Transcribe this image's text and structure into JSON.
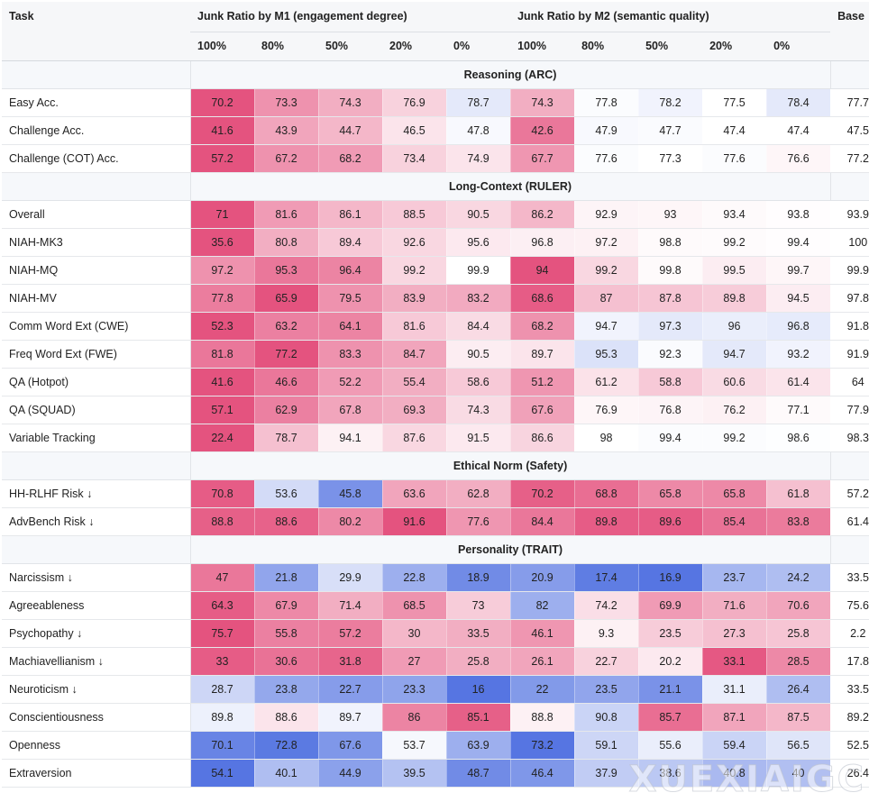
{
  "header": {
    "task": "Task",
    "group_m1": "Junk Ratio by M1 (engagement degree)",
    "group_m2": "Junk Ratio by M2 (semantic quality)",
    "base": "Base",
    "ratios_m1": [
      "100%",
      "80%",
      "50%",
      "20%",
      "0%"
    ],
    "ratios_m2": [
      "100%",
      "80%",
      "50%",
      "20%",
      "0%"
    ]
  },
  "colors": {
    "text_default": "#222222",
    "header_bg": "#f6f7f9",
    "worse": "#e34a78",
    "better": "#4d6ee0",
    "neutral": "#ffffff"
  },
  "watermark": "XUEXIAIGC",
  "sections": [
    {
      "title": "Reasoning (ARC)",
      "rows": [
        {
          "task": "Easy Acc.",
          "values": [
            "70.2",
            "73.3",
            "74.3",
            "76.9",
            "78.7",
            "74.3",
            "77.8",
            "78.2",
            "77.5",
            "78.4"
          ],
          "base": "77.7",
          "shades": [
            -0.95,
            -0.6,
            -0.45,
            -0.25,
            0.15,
            -0.45,
            0.02,
            0.08,
            0.0,
            0.15
          ]
        },
        {
          "task": "Challenge Acc.",
          "values": [
            "41.6",
            "43.9",
            "44.7",
            "46.5",
            "47.8",
            "42.6",
            "47.9",
            "47.7",
            "47.4",
            "47.4"
          ],
          "base": "47.5",
          "shades": [
            -0.95,
            -0.5,
            -0.4,
            -0.15,
            0.04,
            -0.75,
            0.04,
            0.03,
            0.0,
            0.0
          ]
        },
        {
          "task": "Challenge (COT) Acc.",
          "values": [
            "57.2",
            "67.2",
            "68.2",
            "73.4",
            "74.9",
            "67.7",
            "77.6",
            "77.3",
            "77.6",
            "76.6"
          ],
          "base": "77.2",
          "shades": [
            -0.95,
            -0.6,
            -0.55,
            -0.25,
            -0.15,
            -0.58,
            0.02,
            0.0,
            0.02,
            -0.05
          ]
        }
      ]
    },
    {
      "title": "Long-Context (RULER)",
      "rows": [
        {
          "task": "Overall",
          "values": [
            "71",
            "81.6",
            "86.1",
            "88.5",
            "90.5",
            "86.2",
            "92.9",
            "93",
            "93.4",
            "93.8"
          ],
          "base": "93.9",
          "shades": [
            -0.95,
            -0.55,
            -0.4,
            -0.3,
            -0.22,
            -0.4,
            -0.06,
            -0.05,
            -0.03,
            -0.01
          ]
        },
        {
          "task": "NIAH-MK3",
          "values": [
            "35.6",
            "80.8",
            "89.4",
            "92.6",
            "95.6",
            "96.8",
            "97.2",
            "98.8",
            "99.2",
            "99.4"
          ],
          "base": "100",
          "shades": [
            -0.95,
            -0.45,
            -0.3,
            -0.22,
            -0.12,
            -0.09,
            -0.08,
            -0.03,
            -0.02,
            -0.01
          ]
        },
        {
          "task": "NIAH-MQ",
          "values": [
            "97.2",
            "95.3",
            "96.4",
            "99.2",
            "99.9",
            "94",
            "99.2",
            "99.8",
            "99.5",
            "99.7"
          ],
          "base": "99.9",
          "shades": [
            -0.6,
            -0.75,
            -0.68,
            -0.22,
            0.0,
            -0.95,
            -0.22,
            -0.03,
            -0.1,
            -0.05
          ]
        },
        {
          "task": "NIAH-MV",
          "values": [
            "77.8",
            "65.9",
            "79.5",
            "83.9",
            "83.2",
            "68.6",
            "87",
            "87.8",
            "89.8",
            "94.5"
          ],
          "base": "97.8",
          "shades": [
            -0.72,
            -0.95,
            -0.6,
            -0.45,
            -0.47,
            -0.9,
            -0.35,
            -0.32,
            -0.28,
            -0.1
          ]
        },
        {
          "task": "Comm Word Ext (CWE)",
          "values": [
            "52.3",
            "63.2",
            "64.1",
            "81.6",
            "84.4",
            "68.2",
            "94.7",
            "97.3",
            "96",
            "96.8"
          ],
          "base": "91.8",
          "shades": [
            -0.95,
            -0.7,
            -0.68,
            -0.3,
            -0.2,
            -0.6,
            0.08,
            0.15,
            0.12,
            0.14
          ]
        },
        {
          "task": "Freq Word Ext (FWE)",
          "values": [
            "81.8",
            "77.2",
            "83.3",
            "84.7",
            "90.5",
            "89.7",
            "95.3",
            "92.3",
            "94.7",
            "93.2"
          ],
          "base": "91.9",
          "shades": [
            -0.75,
            -0.95,
            -0.6,
            -0.5,
            -0.1,
            -0.15,
            0.2,
            0.03,
            0.15,
            0.08
          ]
        },
        {
          "task": "QA (Hotpot)",
          "values": [
            "41.6",
            "46.6",
            "52.2",
            "55.4",
            "58.6",
            "51.2",
            "61.2",
            "58.8",
            "60.6",
            "61.4"
          ],
          "base": "64",
          "shades": [
            -0.95,
            -0.75,
            -0.55,
            -0.45,
            -0.3,
            -0.58,
            -0.16,
            -0.3,
            -0.2,
            -0.15
          ]
        },
        {
          "task": "QA (SQUAD)",
          "values": [
            "57.1",
            "62.9",
            "67.8",
            "69.3",
            "74.3",
            "67.6",
            "76.9",
            "76.8",
            "76.2",
            "77.1"
          ],
          "base": "77.9",
          "shades": [
            -0.95,
            -0.7,
            -0.5,
            -0.45,
            -0.2,
            -0.52,
            -0.05,
            -0.06,
            -0.08,
            -0.03
          ]
        },
        {
          "task": "Variable Tracking",
          "values": [
            "22.4",
            "78.7",
            "94.1",
            "87.6",
            "91.5",
            "86.6",
            "98",
            "99.4",
            "99.2",
            "98.6"
          ],
          "base": "98.3",
          "shades": [
            -0.95,
            -0.35,
            -0.08,
            -0.22,
            -0.12,
            -0.24,
            0.0,
            0.02,
            0.02,
            0.01
          ]
        }
      ]
    },
    {
      "title": "Ethical Norm (Safety)",
      "rows": [
        {
          "task": "HH-RLHF Risk ↓",
          "values": [
            "70.8",
            "53.6",
            "45.8",
            "63.6",
            "62.8",
            "70.2",
            "68.8",
            "65.8",
            "65.8",
            "61.8"
          ],
          "base": "57.2",
          "shades": [
            -0.9,
            0.25,
            0.75,
            -0.5,
            -0.45,
            -0.88,
            -0.8,
            -0.65,
            -0.65,
            -0.35
          ]
        },
        {
          "task": "AdvBench Risk ↓",
          "values": [
            "88.8",
            "88.6",
            "80.2",
            "91.6",
            "77.6",
            "84.4",
            "89.8",
            "89.6",
            "85.4",
            "83.8"
          ],
          "base": "61.4",
          "shades": [
            -0.88,
            -0.87,
            -0.65,
            -0.95,
            -0.58,
            -0.75,
            -0.9,
            -0.9,
            -0.78,
            -0.73
          ]
        }
      ]
    },
    {
      "title": "Personality (TRAIT)",
      "rows": [
        {
          "task": "Narcissism ↓",
          "values": [
            "47",
            "21.8",
            "29.9",
            "22.8",
            "18.9",
            "20.9",
            "17.4",
            "16.9",
            "23.7",
            "24.2"
          ],
          "base": "33.5",
          "shades": [
            -0.75,
            0.62,
            0.22,
            0.55,
            0.8,
            0.68,
            0.9,
            0.95,
            0.5,
            0.45
          ]
        },
        {
          "task": "Agreeableness",
          "values": [
            "64.3",
            "67.9",
            "71.4",
            "68.5",
            "73",
            "82",
            "74.2",
            "69.9",
            "71.6",
            "70.6"
          ],
          "base": "75.6",
          "shades": [
            -0.9,
            -0.65,
            -0.45,
            -0.6,
            -0.28,
            0.55,
            -0.18,
            -0.55,
            -0.45,
            -0.5
          ]
        },
        {
          "task": "Psychopathy ↓",
          "values": [
            "75.7",
            "55.8",
            "57.2",
            "30",
            "33.5",
            "46.1",
            "9.3",
            "23.5",
            "27.3",
            "25.8"
          ],
          "base": "2.2",
          "shades": [
            -0.95,
            -0.7,
            -0.72,
            -0.4,
            -0.45,
            -0.58,
            -0.08,
            -0.28,
            -0.35,
            -0.32
          ]
        },
        {
          "task": "Machiavellianism ↓",
          "values": [
            "33",
            "30.6",
            "31.8",
            "27",
            "25.8",
            "26.1",
            "22.7",
            "20.2",
            "33.1",
            "28.5"
          ],
          "base": "17.8",
          "shades": [
            -0.9,
            -0.78,
            -0.85,
            -0.55,
            -0.45,
            -0.5,
            -0.25,
            -0.12,
            -0.92,
            -0.65
          ]
        },
        {
          "task": "Neuroticism ↓",
          "values": [
            "28.7",
            "23.8",
            "22.7",
            "23.3",
            "16",
            "22",
            "23.5",
            "21.1",
            "31.1",
            "26.4"
          ],
          "base": "33.5",
          "shades": [
            0.28,
            0.6,
            0.68,
            0.63,
            0.95,
            0.7,
            0.62,
            0.75,
            0.12,
            0.45
          ]
        },
        {
          "task": "Conscientiousness",
          "values": [
            "89.8",
            "88.6",
            "89.7",
            "86",
            "85.1",
            "88.8",
            "90.8",
            "85.7",
            "87.1",
            "87.5"
          ],
          "base": "89.2",
          "shades": [
            0.1,
            -0.15,
            0.08,
            -0.68,
            -0.88,
            -0.08,
            0.3,
            -0.8,
            -0.5,
            -0.4
          ]
        },
        {
          "task": "Openness",
          "values": [
            "70.1",
            "72.8",
            "67.6",
            "53.7",
            "63.9",
            "73.2",
            "59.1",
            "55.6",
            "59.4",
            "56.5"
          ],
          "base": "52.5",
          "shades": [
            0.85,
            0.92,
            0.72,
            0.05,
            0.55,
            0.95,
            0.28,
            0.12,
            0.3,
            0.18
          ]
        },
        {
          "task": "Extraversion",
          "values": [
            "54.1",
            "40.1",
            "44.9",
            "39.5",
            "48.7",
            "46.4",
            "37.9",
            "38.6",
            "40.8",
            "40"
          ],
          "base": "26.4",
          "shades": [
            0.95,
            0.45,
            0.65,
            0.42,
            0.8,
            0.72,
            0.35,
            0.38,
            0.48,
            0.44
          ]
        }
      ]
    }
  ]
}
